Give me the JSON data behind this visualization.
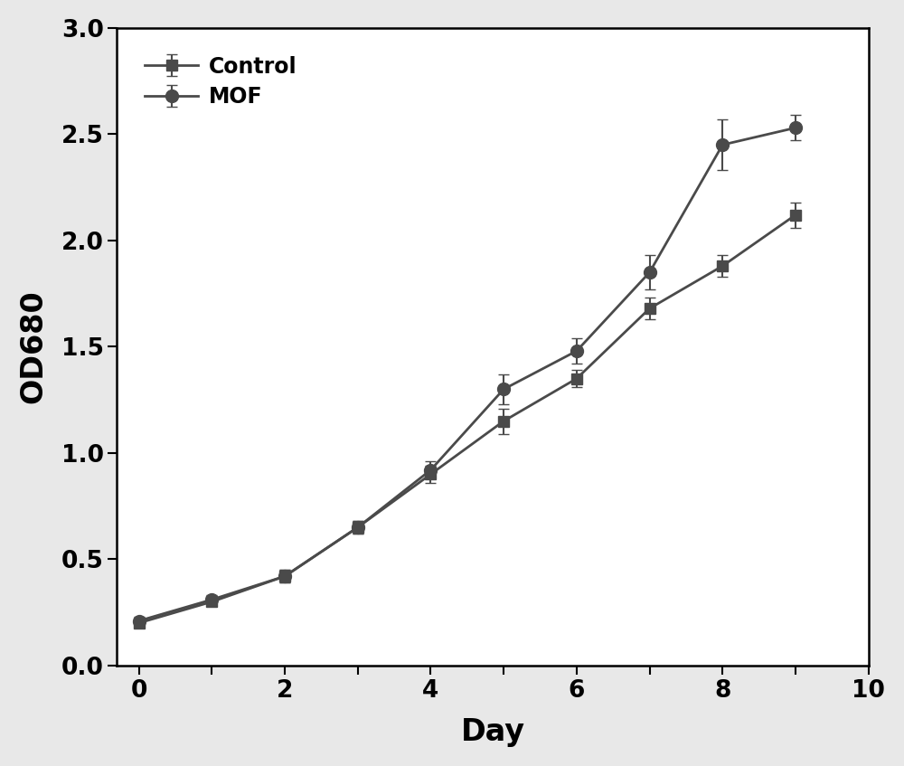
{
  "title": "",
  "xlabel": "Day",
  "ylabel": "OD680",
  "xlim": [
    -0.3,
    10
  ],
  "ylim": [
    0.0,
    3.0
  ],
  "xticks": [
    0,
    1,
    2,
    3,
    4,
    5,
    6,
    7,
    8,
    9,
    10
  ],
  "xtick_labels": [
    "0",
    "",
    "2",
    "",
    "4",
    "",
    "6",
    "",
    "8",
    "",
    "10"
  ],
  "yticks": [
    0.0,
    0.5,
    1.0,
    1.5,
    2.0,
    2.5,
    3.0
  ],
  "control": {
    "x": [
      0,
      1,
      2,
      3,
      4,
      5,
      6,
      7,
      8,
      9
    ],
    "y": [
      0.2,
      0.3,
      0.42,
      0.65,
      0.9,
      1.15,
      1.35,
      1.68,
      1.88,
      2.12
    ],
    "yerr": [
      0.02,
      0.02,
      0.03,
      0.03,
      0.04,
      0.06,
      0.04,
      0.05,
      0.05,
      0.06
    ],
    "color": "#4a4a4a",
    "marker": "s",
    "label": "Control"
  },
  "mof": {
    "x": [
      0,
      1,
      2,
      3,
      4,
      5,
      6,
      7,
      8,
      9
    ],
    "y": [
      0.21,
      0.31,
      0.42,
      0.65,
      0.92,
      1.3,
      1.48,
      1.85,
      2.45,
      2.53
    ],
    "yerr": [
      0.02,
      0.02,
      0.03,
      0.03,
      0.04,
      0.07,
      0.06,
      0.08,
      0.12,
      0.06
    ],
    "color": "#4a4a4a",
    "marker": "o",
    "label": "MOF"
  },
  "figure_facecolor": "#e8e8e8",
  "axes_facecolor": "#ffffff",
  "legend_fontsize": 17,
  "axis_label_fontsize": 24,
  "tick_fontsize": 19,
  "linewidth": 2.0,
  "markersize": 9,
  "capsize": 4,
  "elinewidth": 1.5
}
